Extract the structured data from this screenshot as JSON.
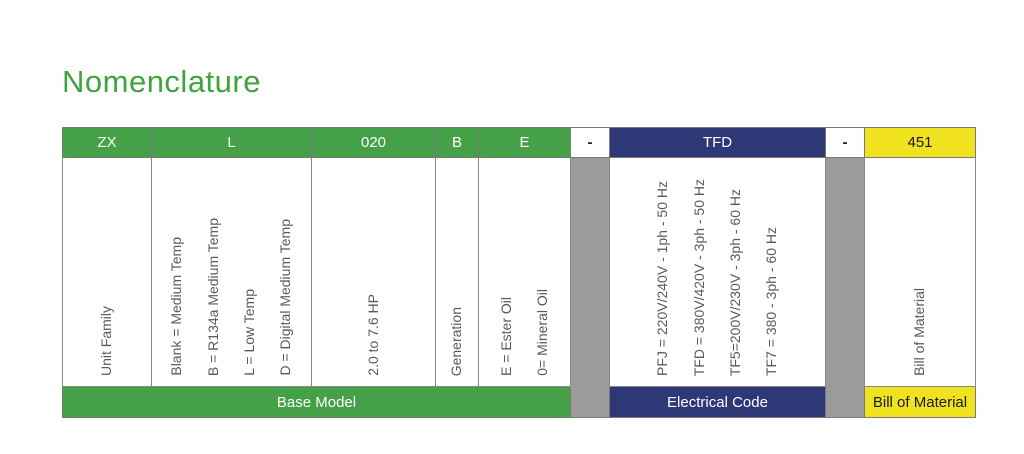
{
  "page": {
    "title": "Nomenclature"
  },
  "colors": {
    "green": "#45a148",
    "navy": "#2f3876",
    "yellow": "#f0e21e",
    "gray_separator": "#9b9b9b",
    "title_green": "#3ea53e",
    "body_text": "#595a5c"
  },
  "nomenclature": {
    "columns": [
      {
        "code": "ZX",
        "style": "green",
        "options": [
          "Unit Family"
        ]
      },
      {
        "code": "L",
        "style": "green",
        "options": [
          "Blank = Medium Temp",
          "B = R134a Medium Temp",
          "L = Low Temp",
          "D = Digital Medium Temp"
        ]
      },
      {
        "code": "020",
        "style": "green",
        "options": [
          "2.0 to 7.6 HP"
        ]
      },
      {
        "code": "B",
        "style": "green",
        "options": [
          "Generation"
        ]
      },
      {
        "code": "E",
        "style": "green",
        "options": [
          "E = Ester Oil",
          "0= Mineral Oil"
        ]
      },
      {
        "code": "-",
        "style": "separator",
        "options": []
      },
      {
        "code": "TFD",
        "style": "navy",
        "options": [
          "PFJ = 220V/240V - 1ph - 50 Hz",
          "TFD = 380V/420V - 3ph - 50 Hz",
          "TF5=200V/230V - 3ph - 60 Hz",
          "TF7 = 380 - 3ph - 60 Hz"
        ]
      },
      {
        "code": "-",
        "style": "separator",
        "options": []
      },
      {
        "code": "451",
        "style": "yellow",
        "options": [
          "Bill of Material"
        ]
      }
    ],
    "footer": {
      "base_model": "Base Model",
      "electrical_code": "Electrical Code",
      "bill_of_material": "Bill of Material"
    }
  }
}
